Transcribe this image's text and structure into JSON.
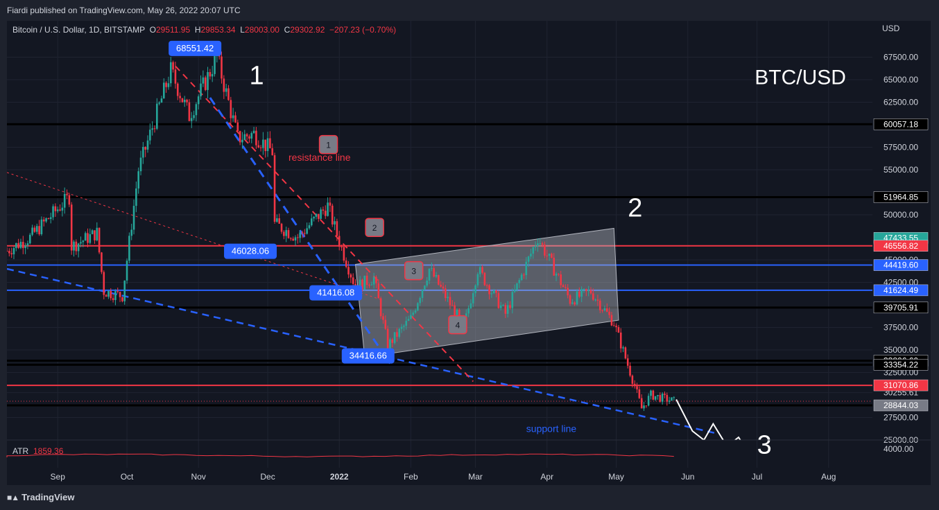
{
  "header": {
    "published": "Fiardi published on TradingView.com, May 26, 2022 20:07 UTC"
  },
  "symbol": {
    "name": "Bitcoin / U.S. Dollar, 1D, BITSTAMP",
    "open_label": "O",
    "open": "29511.95",
    "high_label": "H",
    "high": "29853.34",
    "low_label": "L",
    "low": "28003.00",
    "close_label": "C",
    "close": "29302.92",
    "change": "−207.23 (−0.70%)"
  },
  "footer": {
    "brand": "TradingView",
    "logo_icon": "tradingview-logo-icon"
  },
  "chart_data": {
    "type": "candlestick",
    "currency": "USD",
    "y_range": [
      25000,
      70000
    ],
    "y_ticks": [
      {
        "label": "67500.00",
        "value": 67500
      },
      {
        "label": "65000.00",
        "value": 65000
      },
      {
        "label": "62500.00",
        "value": 62500
      },
      {
        "label": "57500.00",
        "value": 57500
      },
      {
        "label": "55000.00",
        "value": 55000
      },
      {
        "label": "50000.00",
        "value": 50000
      },
      {
        "label": "45000.00",
        "value": 45000
      },
      {
        "label": "42500.00",
        "value": 42500
      },
      {
        "label": "37500.00",
        "value": 37500
      },
      {
        "label": "35000.00",
        "value": 35000
      },
      {
        "label": "32500.00",
        "value": 32500
      },
      {
        "label": "30255.61",
        "value": 30255.61
      },
      {
        "label": "27500.00",
        "value": 27500
      },
      {
        "label": "25000.00",
        "value": 25000
      }
    ],
    "x_ticks": [
      {
        "label": "Sep",
        "date": "2021-09-01"
      },
      {
        "label": "Oct",
        "date": "2021-10-01"
      },
      {
        "label": "Nov",
        "date": "2021-11-01"
      },
      {
        "label": "Dec",
        "date": "2021-12-01"
      },
      {
        "label": "2022",
        "date": "2022-01-01",
        "bold": true
      },
      {
        "label": "Feb",
        "date": "2022-02-01"
      },
      {
        "label": "Mar",
        "date": "2022-03-01"
      },
      {
        "label": "Apr",
        "date": "2022-04-01"
      },
      {
        "label": "May",
        "date": "2022-05-01"
      },
      {
        "label": "Jun",
        "date": "2022-06-01"
      },
      {
        "label": "Jul",
        "date": "2022-07-01"
      },
      {
        "label": "Aug",
        "date": "2022-08-01"
      }
    ],
    "x_range": [
      "2021-08-10",
      "2022-08-20"
    ],
    "price_path": [
      {
        "date": "2021-08-10",
        "value": 46000
      },
      {
        "date": "2021-08-20",
        "value": 47500
      },
      {
        "date": "2021-09-06",
        "value": 52000
      },
      {
        "date": "2021-09-07",
        "value": 46500
      },
      {
        "date": "2021-09-18",
        "value": 48000
      },
      {
        "date": "2021-09-21",
        "value": 41500
      },
      {
        "date": "2021-09-29",
        "value": 41000
      },
      {
        "date": "2021-10-06",
        "value": 55000
      },
      {
        "date": "2021-10-20",
        "value": 66000
      },
      {
        "date": "2021-10-28",
        "value": 61000
      },
      {
        "date": "2021-11-09",
        "value": 67500
      },
      {
        "date": "2021-11-18",
        "value": 58500
      },
      {
        "date": "2021-11-25",
        "value": 59000
      },
      {
        "date": "2021-12-03",
        "value": 57000
      },
      {
        "date": "2021-12-04",
        "value": 49000
      },
      {
        "date": "2021-12-14",
        "value": 47500
      },
      {
        "date": "2021-12-27",
        "value": 51000
      },
      {
        "date": "2022-01-01",
        "value": 47000
      },
      {
        "date": "2022-01-08",
        "value": 42000
      },
      {
        "date": "2022-01-16",
        "value": 43000
      },
      {
        "date": "2022-01-22",
        "value": 35500
      },
      {
        "date": "2022-02-01",
        "value": 38500
      },
      {
        "date": "2022-02-09",
        "value": 44000
      },
      {
        "date": "2022-02-24",
        "value": 37500
      },
      {
        "date": "2022-03-02",
        "value": 44000
      },
      {
        "date": "2022-03-14",
        "value": 39000
      },
      {
        "date": "2022-03-28",
        "value": 47500
      },
      {
        "date": "2022-04-11",
        "value": 40500
      },
      {
        "date": "2022-04-20",
        "value": 41500
      },
      {
        "date": "2022-04-30",
        "value": 38000
      },
      {
        "date": "2022-05-09",
        "value": 31000
      },
      {
        "date": "2022-05-12",
        "value": 28500
      },
      {
        "date": "2022-05-16",
        "value": 30000
      },
      {
        "date": "2022-05-26",
        "value": 29302.92
      }
    ],
    "horizontal_levels": [
      {
        "value": 60057.18,
        "label": "60057.18",
        "color": "#000000",
        "badge": "#000000"
      },
      {
        "value": 51964.85,
        "label": "51964.85",
        "color": "#000000",
        "badge": "#000000"
      },
      {
        "value": 47433.55,
        "label": "47433.55",
        "color": null,
        "badge": "#26a69a"
      },
      {
        "value": 46556.82,
        "label": "46556.82",
        "color": "#f23645",
        "badge": "#f23645"
      },
      {
        "value": 44419.6,
        "label": "44419.60",
        "color": "#2962ff",
        "badge": "#2962ff"
      },
      {
        "value": 41624.49,
        "label": "41624.49",
        "color": "#2962ff",
        "badge": "#2962ff"
      },
      {
        "value": 39705.91,
        "label": "39705.91",
        "color": "#000000",
        "badge": "#000000"
      },
      {
        "value": 33806.6,
        "label": "33806.60",
        "color": "#000000",
        "badge": "#000000"
      },
      {
        "value": 33354.22,
        "label": "33354.22",
        "color": "#000000",
        "badge": "#000000"
      },
      {
        "value": 31070.86,
        "label": "31070.86",
        "color": "#f23645",
        "badge": "#f23645"
      },
      {
        "value": 28844.03,
        "label": "28844.03",
        "color": "#000000",
        "badge": "#787b86"
      }
    ],
    "price_callouts": [
      {
        "label": "68551.42",
        "date": "2021-11-10",
        "value": 68551.42
      },
      {
        "label": "46028.06",
        "date": "2021-12-04",
        "value": 46028.06
      },
      {
        "label": "41416.08",
        "date": "2022-01-10",
        "value": 41416.08
      },
      {
        "label": "34416.66",
        "date": "2022-01-24",
        "value": 34416.66
      }
    ],
    "annotations": {
      "resistance_line": "resistance line",
      "support_line": "support line",
      "pair_title": "BTC/USD",
      "wave_1": "1",
      "wave_2": "2",
      "wave_3": "3",
      "touch_1": "1",
      "touch_2": "2",
      "touch_3": "3",
      "touch_4": "4"
    },
    "indicator": {
      "name": "ATR",
      "value": "1859.36",
      "scale_label": "4000.00"
    },
    "colors": {
      "up": "#26a69a",
      "down": "#f23645",
      "support": "#2962ff",
      "resistance": "#f23645",
      "background": "#131722"
    }
  }
}
